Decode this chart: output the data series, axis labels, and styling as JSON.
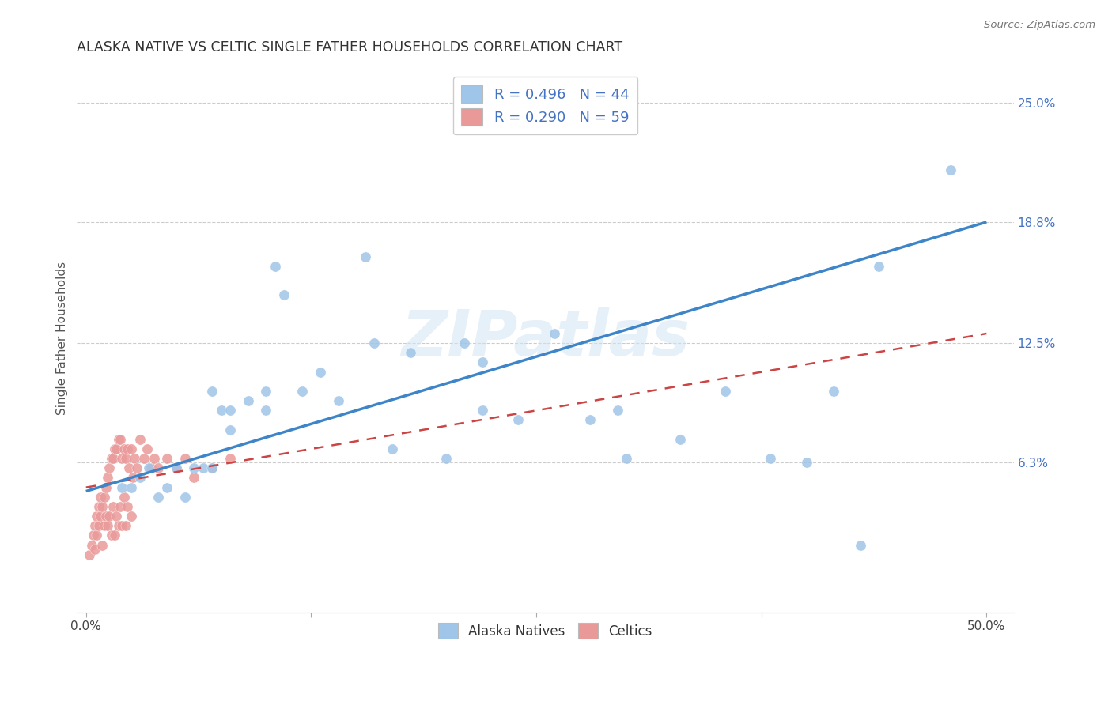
{
  "title": "ALASKA NATIVE VS CELTIC SINGLE FATHER HOUSEHOLDS CORRELATION CHART",
  "source": "Source: ZipAtlas.com",
  "ylabel": "Single Father Households",
  "legend1_label": "R = 0.496   N = 44",
  "legend2_label": "R = 0.290   N = 59",
  "color_blue": "#9fc5e8",
  "color_pink": "#ea9999",
  "color_blue_line": "#3d85c8",
  "color_pink_line": "#cc4444",
  "watermark": "ZIPatlas",
  "alaska_x": [
    0.02,
    0.025,
    0.03,
    0.035,
    0.04,
    0.045,
    0.05,
    0.055,
    0.06,
    0.065,
    0.07,
    0.07,
    0.075,
    0.08,
    0.08,
    0.09,
    0.1,
    0.1,
    0.105,
    0.11,
    0.12,
    0.13,
    0.14,
    0.155,
    0.16,
    0.17,
    0.18,
    0.2,
    0.21,
    0.22,
    0.22,
    0.24,
    0.26,
    0.28,
    0.295,
    0.3,
    0.33,
    0.355,
    0.38,
    0.4,
    0.415,
    0.43,
    0.44,
    0.48
  ],
  "alaska_y": [
    0.05,
    0.05,
    0.055,
    0.06,
    0.045,
    0.05,
    0.06,
    0.045,
    0.06,
    0.06,
    0.1,
    0.06,
    0.09,
    0.09,
    0.08,
    0.095,
    0.09,
    0.1,
    0.165,
    0.15,
    0.1,
    0.11,
    0.095,
    0.17,
    0.125,
    0.07,
    0.12,
    0.065,
    0.125,
    0.115,
    0.09,
    0.085,
    0.13,
    0.085,
    0.09,
    0.065,
    0.075,
    0.1,
    0.065,
    0.063,
    0.1,
    0.02,
    0.165,
    0.215
  ],
  "celtic_x": [
    0.002,
    0.003,
    0.004,
    0.005,
    0.005,
    0.006,
    0.006,
    0.007,
    0.007,
    0.008,
    0.008,
    0.009,
    0.009,
    0.01,
    0.01,
    0.011,
    0.011,
    0.012,
    0.012,
    0.013,
    0.013,
    0.014,
    0.014,
    0.015,
    0.015,
    0.016,
    0.016,
    0.017,
    0.017,
    0.018,
    0.018,
    0.019,
    0.019,
    0.02,
    0.02,
    0.021,
    0.021,
    0.022,
    0.022,
    0.023,
    0.023,
    0.024,
    0.025,
    0.025,
    0.026,
    0.027,
    0.028,
    0.03,
    0.032,
    0.034,
    0.036,
    0.038,
    0.04,
    0.045,
    0.05,
    0.055,
    0.06,
    0.07,
    0.08
  ],
  "celtic_y": [
    0.015,
    0.02,
    0.025,
    0.03,
    0.018,
    0.025,
    0.035,
    0.03,
    0.04,
    0.035,
    0.045,
    0.04,
    0.02,
    0.045,
    0.03,
    0.05,
    0.035,
    0.055,
    0.03,
    0.06,
    0.035,
    0.065,
    0.025,
    0.065,
    0.04,
    0.07,
    0.025,
    0.07,
    0.035,
    0.075,
    0.03,
    0.075,
    0.04,
    0.065,
    0.03,
    0.07,
    0.045,
    0.065,
    0.03,
    0.07,
    0.04,
    0.06,
    0.07,
    0.035,
    0.055,
    0.065,
    0.06,
    0.075,
    0.065,
    0.07,
    0.06,
    0.065,
    0.06,
    0.065,
    0.06,
    0.065,
    0.055,
    0.06,
    0.065
  ],
  "blue_line_x": [
    0.0,
    0.5
  ],
  "blue_line_y": [
    0.048,
    0.188
  ],
  "pink_line_x": [
    0.0,
    0.5
  ],
  "pink_line_y": [
    0.05,
    0.13
  ],
  "xtick_vals": [
    0.0,
    0.125,
    0.25,
    0.375,
    0.5
  ],
  "ytick_vals": [
    0.063,
    0.125,
    0.188,
    0.25
  ],
  "ytick_labels": [
    "6.3%",
    "12.5%",
    "18.8%",
    "25.0%"
  ],
  "xlim": [
    -0.005,
    0.515
  ],
  "ylim": [
    -0.015,
    0.27
  ]
}
